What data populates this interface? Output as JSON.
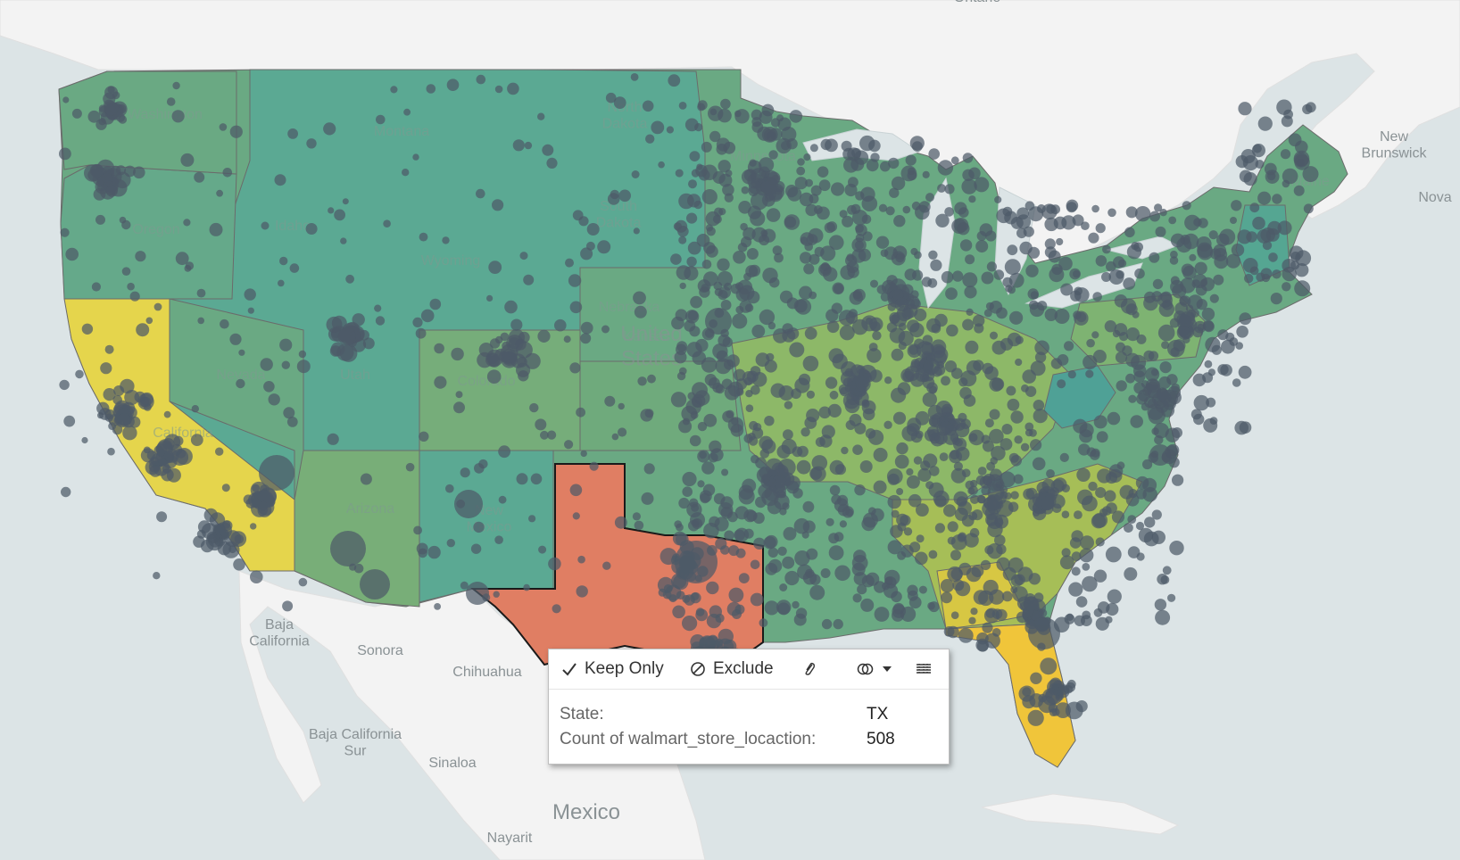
{
  "map": {
    "state_labels": [
      "Washington",
      "Montana",
      "North Dakota",
      "Oregon",
      "Idaho",
      "South Dakota",
      "Wyoming",
      "Minnesota",
      "Nebraska",
      "Nevada",
      "Utah",
      "Colorado",
      "Kansas",
      "California",
      "Arizona",
      "New Mexico",
      "Maine",
      "United States"
    ],
    "place_labels": [
      "Baja California",
      "Sonora",
      "Chihuahua",
      "Baja California Sur",
      "Sinaloa",
      "Mexico",
      "Nayarit",
      "New Brunswick",
      "Nova",
      "Ontario"
    ],
    "highlighted_state": "TX",
    "colors": {
      "water": "#dce4e6",
      "land": "#f3f3f3",
      "texas_highlight": "#e07e63",
      "california": "#e5d54c",
      "florida": "#f0c53a",
      "teal": "#5aab96",
      "green": "#7aae7a",
      "marks": "#4d5a68"
    }
  },
  "tooltip": {
    "keep_only_label": "Keep Only",
    "exclude_label": "Exclude",
    "state_label": "State:",
    "state_value": "TX",
    "count_label": "Count of walmart_store_locaction:",
    "count_value": "508"
  }
}
